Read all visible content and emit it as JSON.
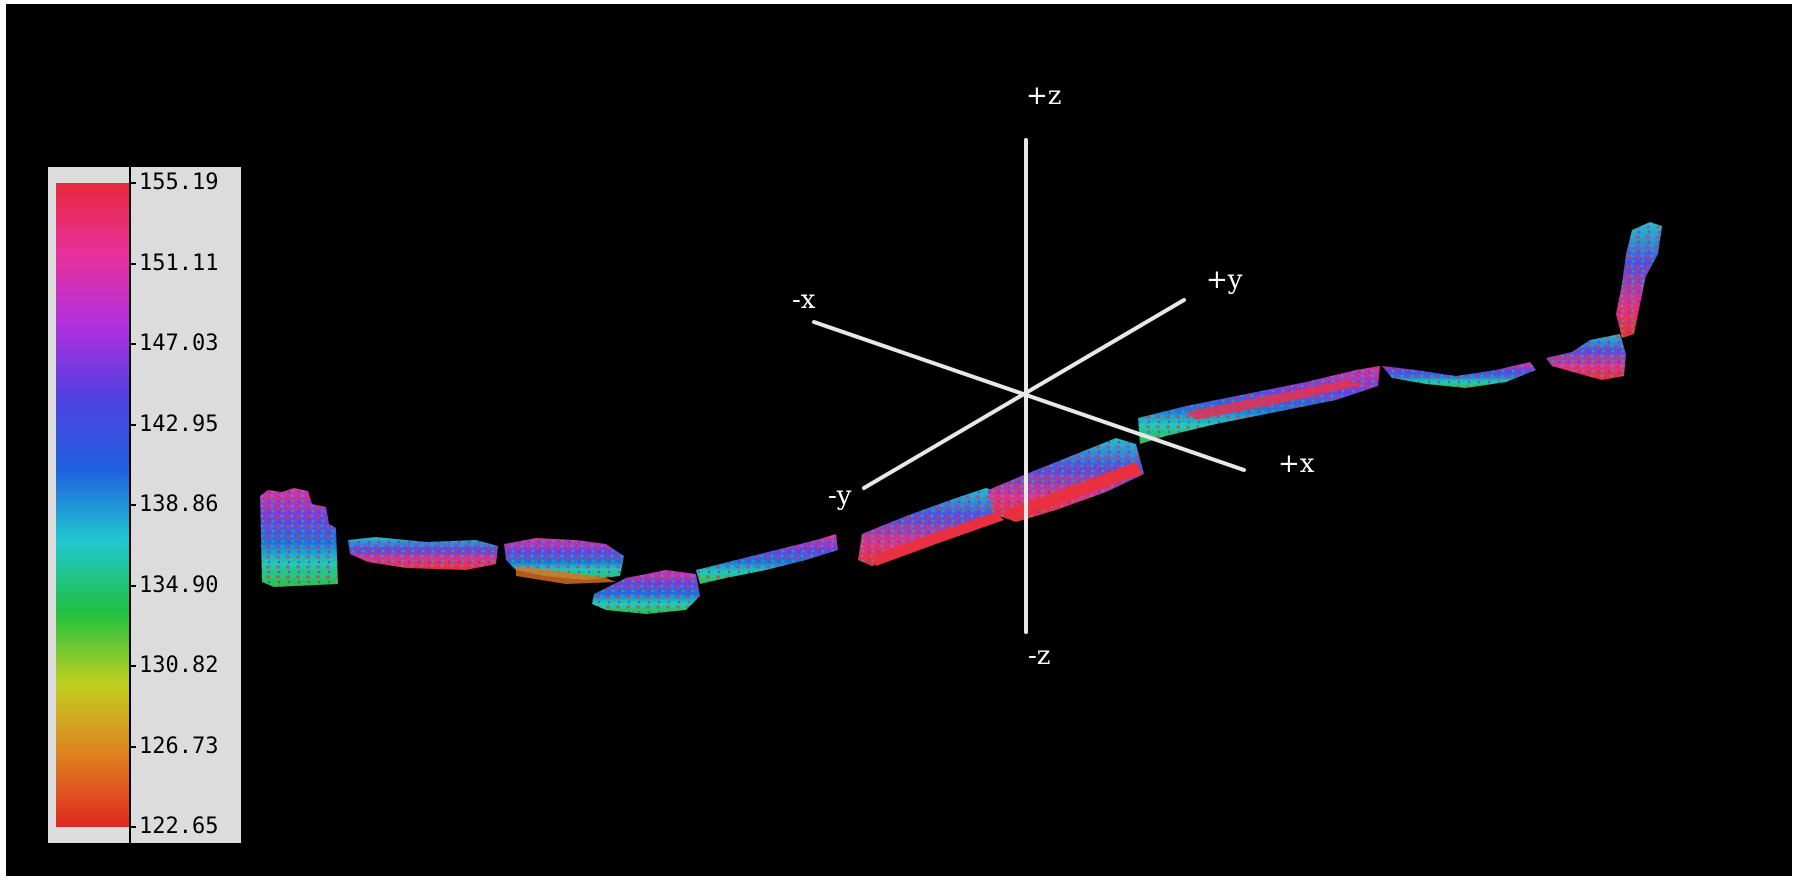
{
  "axes": {
    "plus_z": "+z",
    "minus_z": "-z",
    "plus_x": "+x",
    "minus_x": "-x",
    "plus_y": "+y",
    "minus_y": "-y",
    "color": "#ffffff"
  },
  "legend": {
    "ticks": [
      "155.19",
      "151.11",
      "147.03",
      "142.95",
      "138.86",
      "134.90",
      "130.82",
      "126.73",
      "122.65"
    ],
    "max": 155.19,
    "min": 122.65,
    "colormap": [
      "#e8283c",
      "#e8309c",
      "#b030e0",
      "#5040e0",
      "#2060e0",
      "#20c8d0",
      "#20c040",
      "#c0d020",
      "#e08020",
      "#e02820"
    ]
  }
}
